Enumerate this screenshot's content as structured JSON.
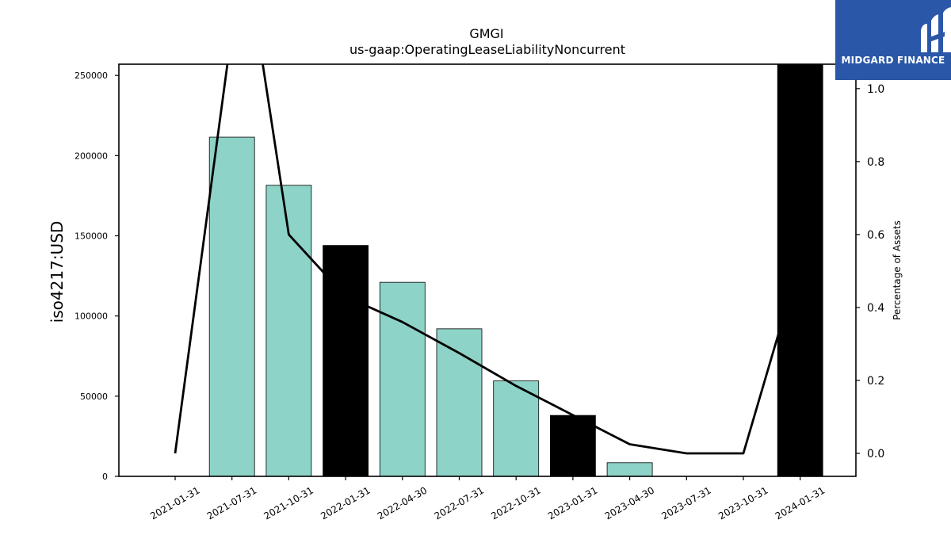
{
  "logo": {
    "text": "MIDGARD FINANCE",
    "color": "#2a57a8"
  },
  "chart_data": {
    "type": "bar",
    "title": "GMGI",
    "subtitle": "us-gaap:OperatingLeaseLiabilityNoncurrent",
    "ylabel": "iso4217:USD",
    "y2label": "Percentage of Assets",
    "categories": [
      "2021-01-31",
      "2021-07-31",
      "2021-10-31",
      "2022-01-31",
      "2022-04-30",
      "2022-07-31",
      "2022-10-31",
      "2023-01-31",
      "2023-04-30",
      "2023-07-31",
      "2023-10-31",
      "2024-01-31"
    ],
    "bars": {
      "values": [
        0,
        211500,
        181500,
        144000,
        121000,
        92000,
        59500,
        38000,
        8500,
        0,
        0,
        260000
      ],
      "highlight": [
        false,
        false,
        false,
        true,
        false,
        false,
        false,
        true,
        false,
        false,
        false,
        true
      ],
      "color": "#8ed3c7",
      "highlight_color": "#000000"
    },
    "line": {
      "values": [
        0.0,
        1.16,
        1.16,
        0.6,
        0.43,
        0.36,
        0.275,
        0.185,
        0.105,
        0.025,
        0.0,
        0.0,
        0.53
      ],
      "x_index": [
        0,
        1,
        1.45,
        2,
        3,
        4,
        5,
        6,
        7,
        8,
        9,
        10,
        11
      ],
      "color": "#000000"
    },
    "ylim": [
      0,
      257000
    ],
    "yticks": [
      0,
      50000,
      100000,
      150000,
      200000,
      250000
    ],
    "y2lim": [
      -0.063,
      1.067
    ],
    "y2ticks": [
      0.0,
      0.2,
      0.4,
      0.6,
      0.8,
      1.0
    ],
    "y2ticklabels": [
      "0.0",
      "0.2",
      "0.4",
      "0.6",
      "0.8",
      "1.0"
    ],
    "grid": false
  }
}
